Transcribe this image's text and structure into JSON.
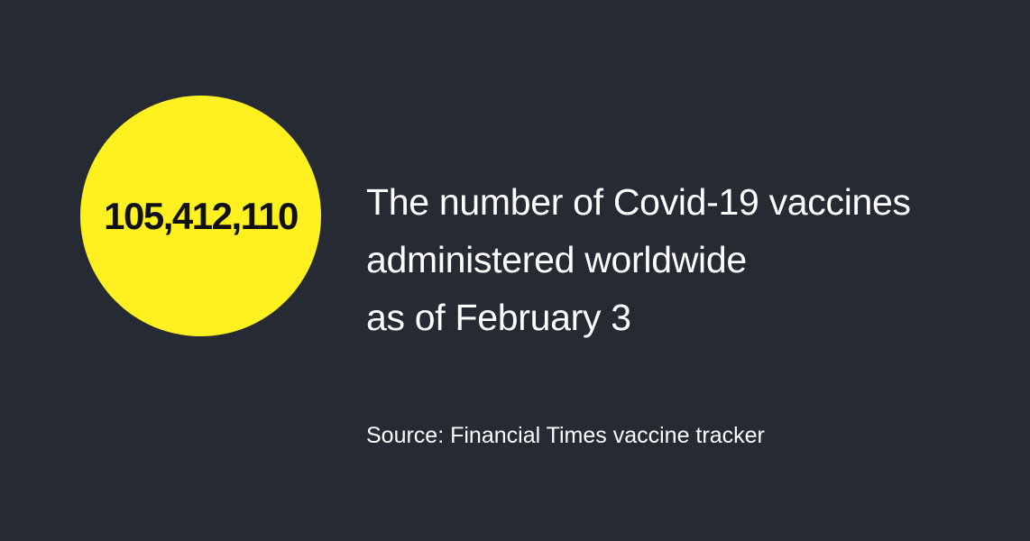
{
  "stat": {
    "value": "105,412,110"
  },
  "headline": {
    "lines": [
      "The number of Covid-19 vaccines",
      "administered worldwide",
      "as of February 3"
    ]
  },
  "source": "Source: Financial Times vaccine tracker",
  "colors": {
    "background": "#262a33",
    "accent": "#fff01f",
    "text": "#ffffff",
    "number_text": "#111111"
  }
}
